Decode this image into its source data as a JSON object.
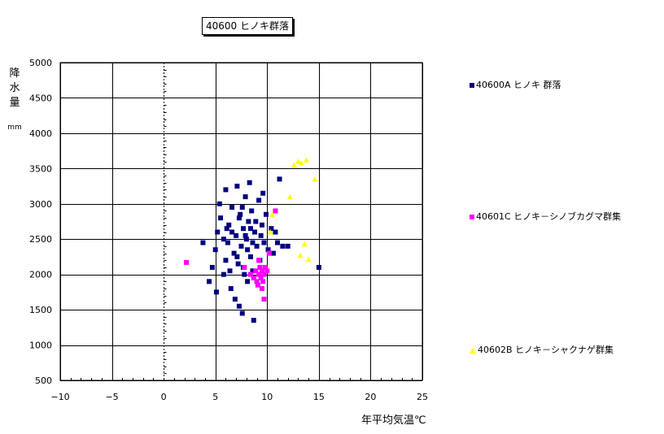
{
  "chart_data": {
    "type": "scatter",
    "title": "40600 ヒノキ群落",
    "xlabel": "年平均気温℃",
    "ylabel": "降水量",
    "ylabel_unit": "mm",
    "xlim": [
      -10,
      25
    ],
    "ylim": [
      500,
      5000
    ],
    "x_ticks": [
      -10,
      -5,
      0,
      5,
      10,
      15,
      20,
      25
    ],
    "x_tick_labels": [
      "−10",
      "−5",
      "0",
      "5",
      "10",
      "15",
      "20",
      "25"
    ],
    "y_ticks": [
      500,
      1000,
      1500,
      2000,
      2500,
      3000,
      3500,
      4000,
      4500,
      5000
    ],
    "grid": true,
    "legend_position": "right",
    "series": [
      {
        "name": "40600A ヒノキ 群落",
        "marker": "square",
        "color": "#000080",
        "points": [
          [
            4.4,
            1900
          ],
          [
            4.7,
            2100
          ],
          [
            5.0,
            2350
          ],
          [
            5.2,
            2600
          ],
          [
            5.5,
            2800
          ],
          [
            5.8,
            2000
          ],
          [
            6.0,
            2200
          ],
          [
            6.2,
            2450
          ],
          [
            6.3,
            2700
          ],
          [
            6.5,
            1800
          ],
          [
            6.6,
            2950
          ],
          [
            6.8,
            2300
          ],
          [
            7.0,
            2550
          ],
          [
            7.1,
            3250
          ],
          [
            7.2,
            2150
          ],
          [
            7.4,
            2850
          ],
          [
            7.5,
            2400
          ],
          [
            7.6,
            1450
          ],
          [
            7.7,
            2650
          ],
          [
            7.8,
            2000
          ],
          [
            7.9,
            3100
          ],
          [
            8.0,
            2500
          ],
          [
            8.1,
            1900
          ],
          [
            8.2,
            2750
          ],
          [
            8.4,
            2250
          ],
          [
            8.5,
            2900
          ],
          [
            8.6,
            2050
          ],
          [
            8.7,
            1350
          ],
          [
            8.8,
            2600
          ],
          [
            9.0,
            2400
          ],
          [
            9.2,
            3050
          ],
          [
            9.3,
            2200
          ],
          [
            9.5,
            2700
          ],
          [
            9.7,
            2450
          ],
          [
            9.9,
            2850
          ],
          [
            10.1,
            2350
          ],
          [
            10.4,
            2650
          ],
          [
            10.6,
            2300
          ],
          [
            11.0,
            2450
          ],
          [
            11.2,
            3350
          ],
          [
            11.5,
            2400
          ],
          [
            12.0,
            2400
          ],
          [
            15.0,
            2100
          ],
          [
            5.4,
            3000
          ],
          [
            6.0,
            3200
          ],
          [
            6.9,
            1650
          ],
          [
            7.3,
            1550
          ],
          [
            8.3,
            3300
          ],
          [
            9.6,
            3150
          ],
          [
            10.8,
            2600
          ],
          [
            3.8,
            2450
          ],
          [
            5.1,
            1750
          ],
          [
            6.4,
            2050
          ],
          [
            7.1,
            2250
          ],
          [
            7.7,
            2100
          ],
          [
            8.1,
            2350
          ],
          [
            8.9,
            2750
          ],
          [
            9.4,
            2550
          ],
          [
            6.6,
            2600
          ],
          [
            7.3,
            2800
          ],
          [
            7.9,
            2550
          ],
          [
            8.4,
            2650
          ],
          [
            6.1,
            2650
          ],
          [
            7.6,
            2950
          ],
          [
            5.8,
            2500
          ],
          [
            8.6,
            2450
          ]
        ]
      },
      {
        "name": "40601C ヒノキ－シノブカグマ群集",
        "marker": "square",
        "color": "#ff00ff",
        "points": [
          [
            2.2,
            2170
          ],
          [
            7.8,
            2100
          ],
          [
            8.4,
            2000
          ],
          [
            8.7,
            1950
          ],
          [
            8.9,
            2050
          ],
          [
            9.0,
            1900
          ],
          [
            9.1,
            1850
          ],
          [
            9.2,
            2000
          ],
          [
            9.3,
            2100
          ],
          [
            9.4,
            1950
          ],
          [
            9.5,
            2050
          ],
          [
            9.6,
            1900
          ],
          [
            9.7,
            2000
          ],
          [
            9.8,
            2100
          ],
          [
            9.5,
            1800
          ],
          [
            9.7,
            1650
          ],
          [
            10.0,
            2050
          ],
          [
            9.2,
            2200
          ],
          [
            10.2,
            2300
          ],
          [
            10.8,
            2900
          ]
        ]
      },
      {
        "name": "40602B ヒノキ－シャクナゲ群集",
        "marker": "triangle",
        "color": "#ffff00",
        "points": [
          [
            10.3,
            2600
          ],
          [
            10.5,
            2850
          ],
          [
            12.2,
            3100
          ],
          [
            12.6,
            3550
          ],
          [
            13.0,
            3600
          ],
          [
            13.3,
            3580
          ],
          [
            13.8,
            3620
          ],
          [
            14.6,
            3350
          ],
          [
            13.2,
            2270
          ],
          [
            13.6,
            2430
          ],
          [
            14.0,
            2210
          ]
        ]
      }
    ]
  }
}
